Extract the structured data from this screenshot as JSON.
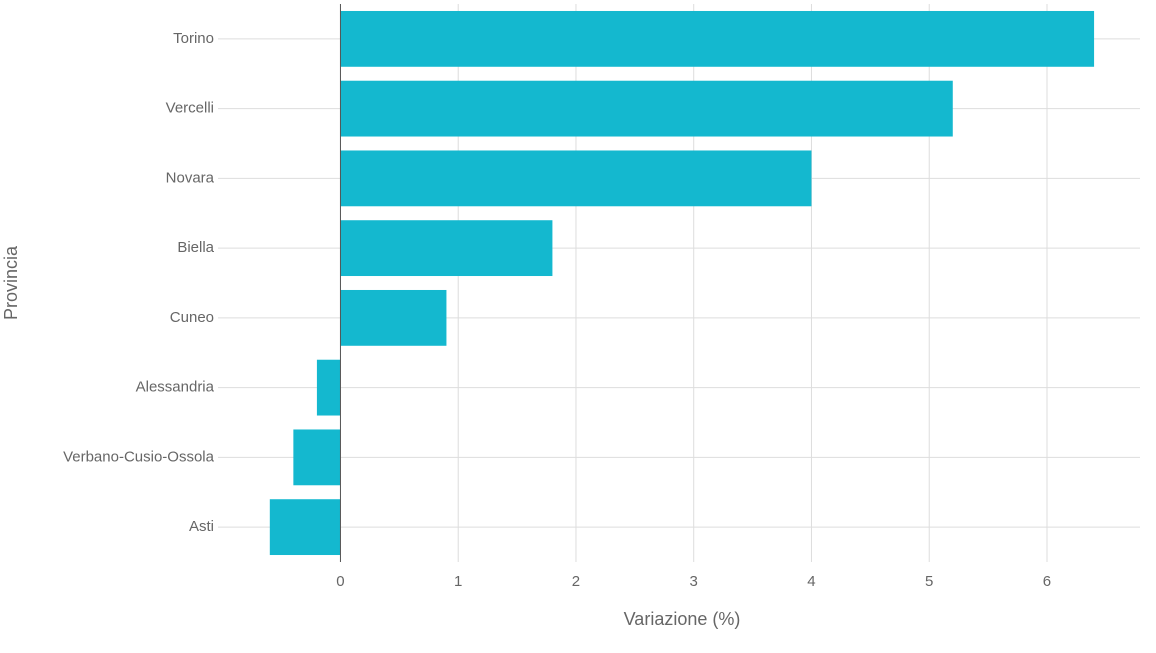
{
  "chart_data": {
    "type": "barh",
    "categories": [
      "Torino",
      "Vercelli",
      "Novara",
      "Biella",
      "Cuneo",
      "Alessandria",
      "Verbano-Cusio-Ossola",
      "Asti"
    ],
    "values": [
      6.4,
      5.2,
      4.0,
      1.8,
      0.9,
      -0.2,
      -0.4,
      -0.6
    ],
    "color": "#14b8cf",
    "x_label": "Variazione (%)",
    "y_label": "Provincia",
    "xlim": [
      -1.04,
      6.79
    ],
    "xticks": [
      0,
      1,
      2,
      3,
      4,
      5,
      6
    ],
    "grid": true
  }
}
